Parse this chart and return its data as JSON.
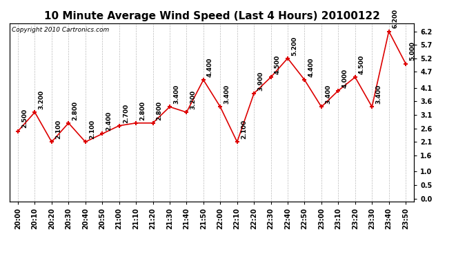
{
  "title": "10 Minute Average Wind Speed (Last 4 Hours) 20100122",
  "copyright": "Copyright 2010 Cartronics.com",
  "x_labels": [
    "20:00",
    "20:10",
    "20:20",
    "20:30",
    "20:40",
    "20:50",
    "21:00",
    "21:10",
    "21:20",
    "21:30",
    "21:40",
    "21:50",
    "22:00",
    "22:10",
    "22:20",
    "22:30",
    "22:40",
    "22:50",
    "23:00",
    "23:10",
    "23:20",
    "23:30",
    "23:40",
    "23:50"
  ],
  "y_values": [
    2.5,
    3.2,
    2.1,
    2.8,
    2.1,
    2.4,
    2.7,
    2.8,
    2.8,
    3.4,
    3.2,
    4.4,
    3.4,
    2.1,
    3.9,
    4.5,
    5.2,
    4.4,
    3.4,
    4.0,
    4.5,
    3.4,
    6.2,
    5.0
  ],
  "point_labels": [
    "2.500",
    "3.200",
    "2.100",
    "2.800",
    "2.100",
    "2.400",
    "2.700",
    "2.800",
    "2.800",
    "3.400",
    "3.200",
    "4.400",
    "3.400",
    "2.100",
    "3.900",
    "4.500",
    "5.200",
    "4.400",
    "3.400",
    "4.000",
    "4.500",
    "3.400",
    "6.200",
    "5.000"
  ],
  "line_color": "#dd0000",
  "marker_color": "#dd0000",
  "bg_color": "#ffffff",
  "grid_color": "#bbbbbb",
  "yticks": [
    0.0,
    0.5,
    1.0,
    1.6,
    2.1,
    2.6,
    3.1,
    3.6,
    4.1,
    4.7,
    5.2,
    5.7,
    6.2
  ],
  "ytick_labels": [
    "0.0",
    "0.5",
    "1.0",
    "1.6",
    "2.1",
    "2.6",
    "3.1",
    "3.6",
    "4.1",
    "4.7",
    "5.2",
    "5.7",
    "6.2"
  ],
  "ylim_min": -0.1,
  "ylim_max": 6.5,
  "title_fontsize": 11,
  "label_fontsize": 7,
  "annotation_fontsize": 6.5,
  "copyright_fontsize": 6.5
}
